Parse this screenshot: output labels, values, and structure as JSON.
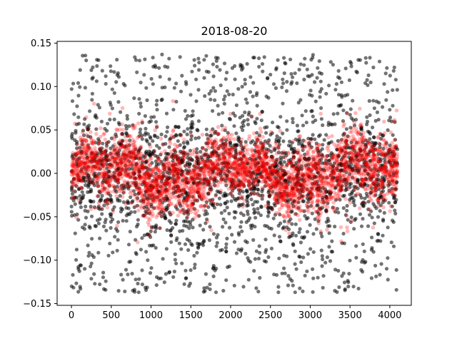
{
  "chart_data": {
    "type": "scatter",
    "title": "2018-08-20",
    "xlabel": "",
    "ylabel": "",
    "xlim": [
      -180,
      4270
    ],
    "ylim": [
      -0.152,
      0.152
    ],
    "x_ticks": [
      0,
      500,
      1000,
      1500,
      2000,
      2500,
      3000,
      3500,
      4000
    ],
    "x_tick_labels": [
      "0",
      "500",
      "1000",
      "1500",
      "2000",
      "2500",
      "3000",
      "3500",
      "4000"
    ],
    "y_ticks": [
      -0.15,
      -0.1,
      -0.05,
      0.0,
      0.05,
      0.1,
      0.15
    ],
    "y_tick_labels": [
      "−0.15",
      "−0.10",
      "−0.05",
      "0.00",
      "0.05",
      "0.10",
      "0.15"
    ],
    "grid": false,
    "legend": "none",
    "series": [
      {
        "color": "#000000",
        "opacity": 0.55,
        "marker": "circle",
        "x_range": [
          0,
          4095
        ],
        "y_clip": [
          -0.137,
          0.137
        ],
        "points": [
          [
            0,
            0.005
          ],
          [
            100,
            -0.02
          ],
          [
            200,
            0.04
          ],
          [
            300,
            -0.06
          ],
          [
            400,
            0.02
          ],
          [
            500,
            0.07
          ],
          [
            600,
            -0.01
          ],
          [
            700,
            -0.09
          ],
          [
            800,
            0.03
          ],
          [
            900,
            0.06
          ],
          [
            1000,
            -0.04
          ],
          [
            1100,
            0.01
          ],
          [
            1200,
            -0.07
          ],
          [
            1300,
            0.05
          ],
          [
            1400,
            0.08
          ],
          [
            1500,
            -0.03
          ],
          [
            1600,
            0.04
          ],
          [
            1700,
            -0.05
          ],
          [
            1800,
            0.02
          ],
          [
            1900,
            0.06
          ],
          [
            2000,
            -0.02
          ],
          [
            2100,
            0.09
          ],
          [
            2200,
            -0.08
          ],
          [
            2300,
            0.03
          ],
          [
            2400,
            -0.01
          ],
          [
            2500,
            0.05
          ],
          [
            2600,
            -0.06
          ],
          [
            2700,
            0.07
          ],
          [
            2800,
            -0.03
          ],
          [
            2900,
            0.02
          ],
          [
            3000,
            -0.09
          ],
          [
            3100,
            0.04
          ],
          [
            3200,
            -0.02
          ],
          [
            3300,
            0.06
          ],
          [
            3400,
            -0.05
          ],
          [
            3500,
            0.01
          ],
          [
            3600,
            0.08
          ],
          [
            3700,
            -0.04
          ],
          [
            3800,
            0.03
          ],
          [
            3900,
            -0.07
          ],
          [
            4000,
            0.02
          ],
          [
            4095,
            -0.01
          ]
        ],
        "n_points": 4096
      },
      {
        "color": "#ff0000",
        "opacity": 0.28,
        "marker": "circle",
        "x_range": [
          0,
          4095
        ],
        "y_clip": [
          -0.137,
          0.137
        ],
        "points": [
          [
            0,
            0.0
          ],
          [
            250,
            0.005
          ],
          [
            500,
            0.002
          ],
          [
            750,
            -0.004
          ],
          [
            1000,
            0.003
          ],
          [
            1250,
            -0.002
          ],
          [
            1500,
            0.004
          ],
          [
            1750,
            -0.003
          ],
          [
            2000,
            0.002
          ],
          [
            2250,
            -0.001
          ],
          [
            2500,
            0.003
          ],
          [
            2750,
            -0.004
          ],
          [
            3000,
            0.001
          ],
          [
            3250,
            0.002
          ],
          [
            3500,
            -0.003
          ],
          [
            3750,
            0.004
          ],
          [
            4095,
            0.0
          ]
        ],
        "n_points": 4096
      }
    ]
  }
}
